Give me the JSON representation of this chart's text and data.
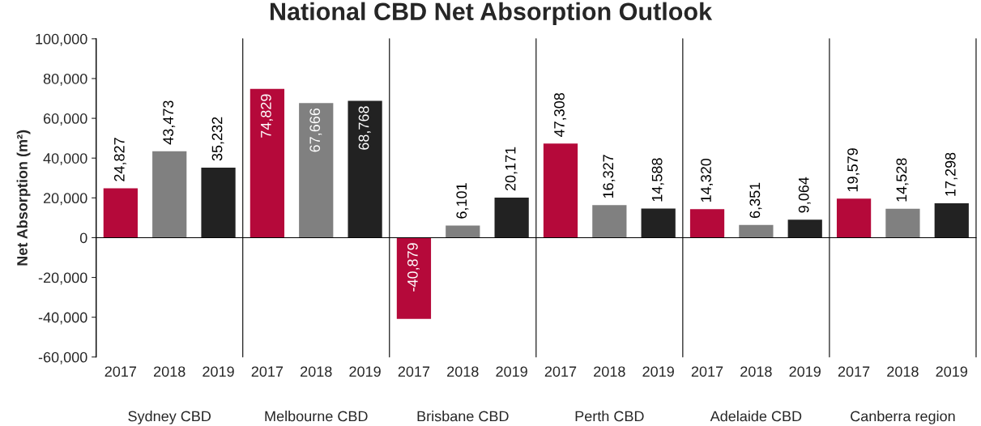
{
  "chart_data": {
    "type": "bar",
    "title": "National CBD Net Absorption Outlook",
    "ylabel": "Net Absorption (m²)",
    "categories": [
      "2017",
      "2018",
      "2019",
      "2017",
      "2018",
      "2019",
      "2017",
      "2018",
      "2019",
      "2017",
      "2018",
      "2019",
      "2017",
      "2018",
      "2019",
      "2017",
      "2018",
      "2019"
    ],
    "values": [
      24827,
      43473,
      35232,
      74829,
      67666,
      68768,
      -40879,
      6101,
      20171,
      47308,
      16327,
      14588,
      14320,
      6351,
      9064,
      19579,
      14528,
      17298
    ],
    "colors": [
      "#b5093a",
      "#808080",
      "#222222",
      "#b5093a",
      "#808080",
      "#222222",
      "#b5093a",
      "#808080",
      "#222222",
      "#b5093a",
      "#808080",
      "#222222",
      "#b5093a",
      "#808080",
      "#222222",
      "#b5093a",
      "#808080",
      "#222222"
    ],
    "value_labels": [
      "24,827",
      "43,473",
      "35,232",
      "74,829",
      "67,666",
      "68,768",
      "-40,879",
      "6,101",
      "20,171",
      "47,308",
      "16,327",
      "14,588",
      "14,320",
      "6,351",
      "9,064",
      "19,579",
      "14,528",
      "17,298"
    ],
    "annotations": [
      "Sydney CBD",
      "Melbourne CBD",
      "Brisbane CBD",
      "Perth CBD",
      "Adelaide CBD",
      "Canberra region"
    ],
    "ylim": [
      -60000,
      100000
    ],
    "yticks": [
      {
        "value": -60000,
        "label": "-60,000"
      },
      {
        "value": -40000,
        "label": "-40,000"
      },
      {
        "value": -20000,
        "label": "-20,000"
      },
      {
        "value": 0,
        "label": "0"
      },
      {
        "value": 20000,
        "label": "20,000"
      },
      {
        "value": 40000,
        "label": "40,000"
      },
      {
        "value": 60000,
        "label": "60,000"
      },
      {
        "value": 80000,
        "label": "80,000"
      },
      {
        "value": 100000,
        "label": "100,000"
      }
    ],
    "legend": false
  }
}
